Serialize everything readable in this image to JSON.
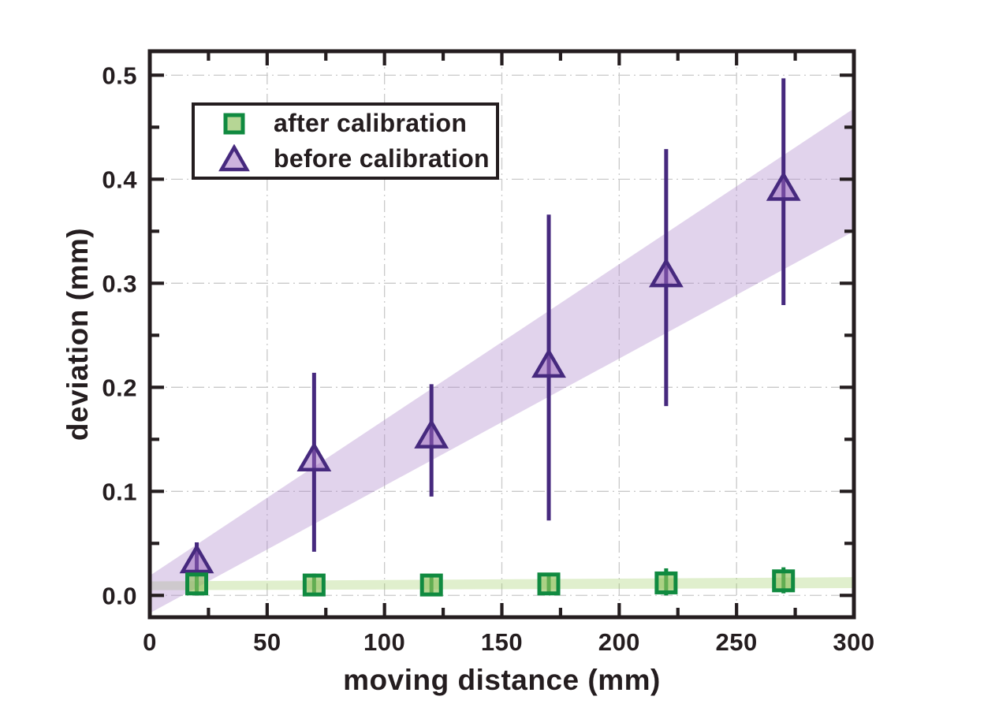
{
  "chart_data": {
    "type": "scatter",
    "title": "",
    "xlabel": "moving distance (mm)",
    "ylabel": "deviation (mm)",
    "xlim": [
      0,
      300
    ],
    "ylim": [
      -0.021,
      0.523
    ],
    "grid": true,
    "legend": {
      "position": "upper-left",
      "border": true
    },
    "xticks": {
      "values": [
        0,
        50,
        100,
        150,
        200,
        250,
        300
      ],
      "labels": [
        "0",
        "50",
        "100",
        "150",
        "200",
        "250",
        "300"
      ]
    },
    "yticks": {
      "values": [
        0,
        0.1,
        0.2,
        0.3,
        0.4,
        0.5
      ],
      "labels": [
        "0.0",
        "0.1",
        "0.2",
        "0.3",
        "0.4",
        "0.5"
      ]
    },
    "xminor": [
      25,
      75,
      125,
      175,
      225,
      275
    ],
    "yminor": [
      0.05,
      0.15,
      0.25,
      0.35,
      0.45
    ],
    "series": [
      {
        "name": "after calibration",
        "marker": "square",
        "x": [
          20,
          70,
          120,
          170,
          220,
          270
        ],
        "y": [
          0.011,
          0.01,
          0.01,
          0.011,
          0.012,
          0.014
        ],
        "y_lo": [
          0.0,
          0.0,
          0.001,
          0.001,
          0.0,
          0.002
        ],
        "y_hi": [
          0.021,
          0.021,
          0.019,
          0.021,
          0.026,
          0.027
        ],
        "line_color": "#108a40",
        "fill_color": "#8fc05c",
        "fill_opacity": 0.65,
        "fit_band": {
          "x": [
            0,
            300
          ],
          "top": [
            0.0135,
            0.0175
          ],
          "bottom": [
            0.005,
            0.007
          ],
          "color": "#9fce62",
          "opacity": 0.32
        }
      },
      {
        "name": "before calibration",
        "marker": "triangle",
        "x": [
          20,
          70,
          120,
          170,
          220,
          270
        ],
        "y": [
          0.032,
          0.13,
          0.152,
          0.22,
          0.307,
          0.39
        ],
        "y_lo": [
          0.005,
          0.042,
          0.095,
          0.072,
          0.182,
          0.279
        ],
        "y_hi": [
          0.051,
          0.214,
          0.203,
          0.366,
          0.429,
          0.497
        ],
        "line_color": "#46297e",
        "fill_color": "#9c68bd",
        "fill_opacity": 0.5,
        "fit_band": {
          "x": [
            0,
            300
          ],
          "top": [
            0.019,
            0.468
          ],
          "bottom": [
            -0.017,
            0.35
          ],
          "color": "#b08cce",
          "opacity": 0.38
        }
      }
    ],
    "colors": {
      "axis": "#241d1f",
      "grid": "#c9c9c9",
      "background": "#ffffff"
    }
  }
}
